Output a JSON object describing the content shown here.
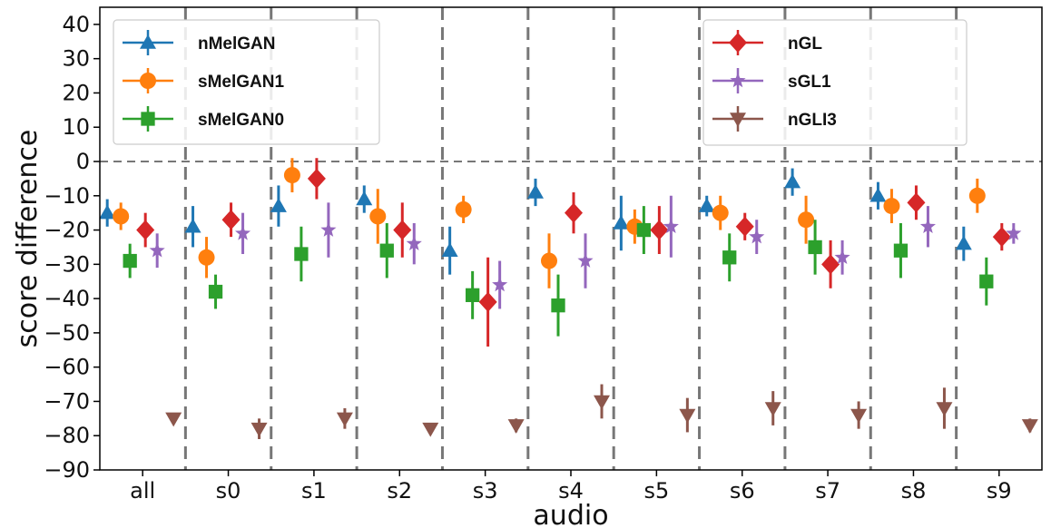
{
  "chart_data": {
    "type": "scatter",
    "title": "",
    "xlabel": "audio",
    "ylabel": "score difference",
    "ylim": [
      -90,
      45
    ],
    "yticks": [
      40,
      30,
      20,
      10,
      0,
      -10,
      -20,
      -30,
      -40,
      -50,
      -60,
      -70,
      -80,
      -90
    ],
    "ytick_labels": [
      "40",
      "30",
      "20",
      "10",
      "0",
      "−10",
      "−20",
      "−30",
      "−40",
      "−50",
      "−60",
      "−70",
      "−80",
      "−90"
    ],
    "categories": [
      "all",
      "s0",
      "s1",
      "s2",
      "s3",
      "s4",
      "s5",
      "s6",
      "s7",
      "s8",
      "s9"
    ],
    "reference_line": 0,
    "grid": false,
    "group_separators": "dashed vertical lines between categories",
    "legend_placement": [
      "top-left",
      "top-right"
    ],
    "legends": [
      [
        "nMelGAN",
        "sMelGAN1",
        "sMelGAN0"
      ],
      [
        "nGL",
        "sGL1",
        "nGLI3"
      ]
    ],
    "series": [
      {
        "name": "nMelGAN",
        "marker": "triangle-up",
        "color": "#1f77b4",
        "values": [
          -15,
          -19,
          -13,
          -11,
          -26,
          -9,
          -18,
          -13,
          -6,
          -10,
          -24
        ],
        "errors": [
          4,
          6,
          6,
          4,
          7,
          4,
          8,
          3,
          4,
          4,
          5
        ]
      },
      {
        "name": "sMelGAN1",
        "marker": "circle",
        "color": "#ff7f0e",
        "values": [
          -16,
          -28,
          -4,
          -16,
          -14,
          -29,
          -19,
          -15,
          -17,
          -13,
          -10
        ],
        "errors": [
          4,
          6,
          5,
          8,
          4,
          8,
          5,
          5,
          7,
          5,
          5
        ]
      },
      {
        "name": "sMelGAN0",
        "marker": "square",
        "color": "#2ca02c",
        "values": [
          -29,
          -38,
          -27,
          -26,
          -39,
          -42,
          -20,
          -28,
          -25,
          -26,
          -35
        ],
        "errors": [
          5,
          5,
          8,
          8,
          7,
          9,
          7,
          7,
          8,
          8,
          7
        ]
      },
      {
        "name": "nGL",
        "marker": "diamond",
        "color": "#d62728",
        "values": [
          -20,
          -17,
          -5,
          -20,
          -41,
          -15,
          -20,
          -19,
          -30,
          -12,
          -22
        ],
        "errors": [
          5,
          5,
          6,
          8,
          13,
          6,
          7,
          4,
          7,
          5,
          4
        ]
      },
      {
        "name": "sGL1",
        "marker": "star",
        "color": "#9467bd",
        "values": [
          -26,
          -21,
          -20,
          -24,
          -36,
          -29,
          -19,
          -22,
          -28,
          -19,
          -21
        ],
        "errors": [
          5,
          6,
          8,
          6,
          7,
          8,
          9,
          5,
          5,
          6,
          3
        ]
      },
      {
        "name": "nGLI3",
        "marker": "triangle-down",
        "color": "#8c564b",
        "values": [
          -75,
          -78,
          -75,
          -78,
          -77,
          -70,
          -74,
          -72,
          -74,
          -72,
          -77
        ],
        "errors": [
          1,
          3,
          3,
          1,
          2,
          5,
          5,
          5,
          4,
          6,
          2
        ]
      }
    ]
  }
}
